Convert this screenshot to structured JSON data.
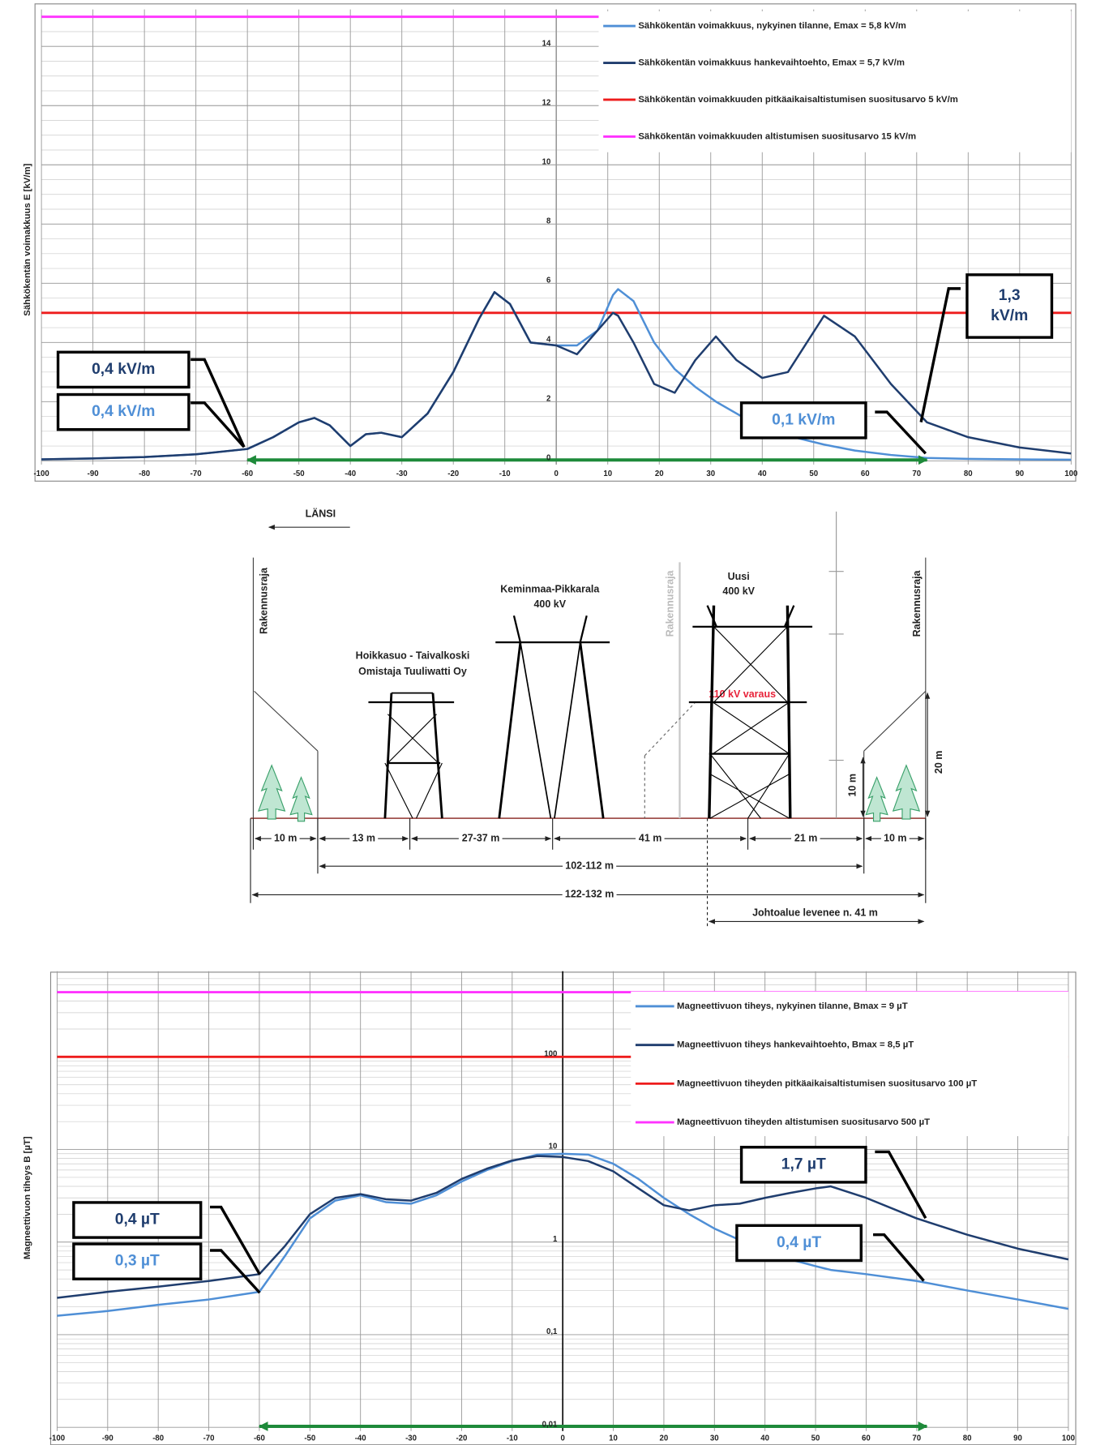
{
  "chart_data": [
    {
      "type": "line",
      "y_label": "Sähkökentän voimakkuus E [kV/m]",
      "x": [
        -100,
        -90,
        -80,
        -70,
        -60,
        -55,
        -50,
        -47,
        -44,
        -40,
        -37,
        -34,
        -30,
        -25,
        -20,
        -15,
        -12,
        -9,
        -5,
        0,
        4,
        8,
        11,
        12,
        15,
        19,
        23,
        27,
        31,
        35,
        40,
        45,
        52,
        58,
        65,
        72,
        80,
        90,
        100
      ],
      "series": [
        {
          "name": "Sähkökentän voimakkuus, nykyinen tilanne, Emax = 5,8 kV/m",
          "color": "#4f8fd6",
          "values": [
            0.05,
            0.08,
            0.13,
            0.22,
            0.4,
            0.8,
            1.3,
            1.45,
            1.2,
            0.5,
            0.9,
            0.95,
            0.8,
            1.6,
            3.0,
            4.8,
            5.7,
            5.3,
            4.0,
            3.9,
            3.9,
            4.4,
            5.6,
            5.8,
            5.4,
            4.0,
            3.1,
            2.5,
            2.0,
            1.6,
            1.1,
            0.85,
            0.55,
            0.35,
            0.2,
            0.1,
            0.07,
            0.05,
            0.04
          ]
        },
        {
          "name": "Sähkökentän voimakkuus hankevaihtoehto, Emax = 5,7 kV/m",
          "color": "#1f3d6e",
          "values": [
            0.05,
            0.08,
            0.13,
            0.22,
            0.4,
            0.8,
            1.3,
            1.45,
            1.2,
            0.5,
            0.9,
            0.95,
            0.8,
            1.6,
            3.0,
            4.8,
            5.7,
            5.3,
            4.0,
            3.9,
            3.6,
            4.4,
            5.0,
            4.9,
            4.0,
            2.6,
            2.3,
            3.4,
            4.2,
            3.4,
            2.8,
            3.0,
            4.9,
            4.2,
            2.6,
            1.3,
            0.8,
            0.45,
            0.25
          ]
        }
      ],
      "hlines": [
        {
          "name": "Sähkökentän voimakkuuden pitkäaikaisaltistumisen suositusarvo 5 kV/m",
          "color": "#ee1c1c",
          "value": 5
        },
        {
          "name": "Sähkökentän voimakkuuden altistumisen suositusarvo 15 kV/m",
          "color": "#ff33ff",
          "value": 15
        }
      ],
      "xlim": [
        -100,
        100
      ],
      "xticks": [
        -100,
        -90,
        -80,
        -70,
        -60,
        -50,
        -40,
        -30,
        -20,
        -10,
        0,
        10,
        20,
        30,
        40,
        50,
        60,
        70,
        80,
        90,
        100
      ],
      "ylim": [
        0,
        15
      ],
      "yticks": [
        0,
        2,
        4,
        6,
        8,
        10,
        12,
        14
      ],
      "log_y": false,
      "grid": true,
      "y_axis_position": 0,
      "legend": "upper right",
      "range_arrow": {
        "values": [
          -60,
          72
        ],
        "color": "#1e8a3a"
      },
      "annotations": [
        {
          "text": "0,4 kV/m",
          "color": "#1f3d6e"
        },
        {
          "text": "0,4 kV/m",
          "color": "#4f8fd6"
        },
        {
          "text": "0,1 kV/m",
          "color": "#4f8fd6"
        },
        {
          "text": [
            "1,3",
            "kV/m"
          ],
          "color": "#1f3d6e"
        }
      ]
    },
    {
      "type": "line",
      "y_label": "Magneettivuon tiheys B [µT]",
      "x": [
        -100,
        -90,
        -80,
        -70,
        -60,
        -55,
        -50,
        -45,
        -40,
        -35,
        -30,
        -25,
        -20,
        -15,
        -10,
        -5,
        0,
        5,
        10,
        15,
        20,
        25,
        30,
        35,
        40,
        45,
        50,
        53,
        60,
        70,
        80,
        90,
        100
      ],
      "series": [
        {
          "name": "Magneettivuon tiheys, nykyinen tilanne, Bmax = 9 µT",
          "color": "#4f8fd6",
          "values": [
            0.16,
            0.18,
            0.21,
            0.24,
            0.29,
            0.7,
            1.8,
            2.8,
            3.2,
            2.7,
            2.6,
            3.2,
            4.5,
            6.0,
            7.5,
            8.8,
            9.0,
            8.8,
            7.0,
            4.8,
            3.0,
            2.0,
            1.4,
            1.05,
            0.8,
            0.65,
            0.55,
            0.5,
            0.45,
            0.38,
            0.3,
            0.24,
            0.19
          ]
        },
        {
          "name": "Magneettivuon tiheys hankevaihtoehto, Bmax = 8,5 µT",
          "color": "#1f3d6e",
          "values": [
            0.25,
            0.29,
            0.33,
            0.38,
            0.45,
            0.9,
            2.0,
            3.0,
            3.3,
            2.9,
            2.8,
            3.4,
            4.8,
            6.2,
            7.6,
            8.5,
            8.3,
            7.5,
            5.8,
            3.8,
            2.5,
            2.2,
            2.5,
            2.6,
            3.0,
            3.4,
            3.8,
            4.0,
            3.0,
            1.8,
            1.2,
            0.85,
            0.65
          ]
        }
      ],
      "hlines": [
        {
          "name": "Magneettivuon tiheyden pitkäaikaisaltistumisen suositusarvo 100 µT",
          "color": "#ee1c1c",
          "value": 100
        },
        {
          "name": "Magneettivuon tiheyden altistumisen suositusarvo 500 µT",
          "color": "#ff33ff",
          "value": 500
        }
      ],
      "xlim": [
        -100,
        100
      ],
      "xticks": [
        -100,
        -90,
        -80,
        -70,
        -60,
        -50,
        -40,
        -30,
        -20,
        -10,
        0,
        10,
        20,
        30,
        40,
        50,
        60,
        70,
        80,
        90,
        100
      ],
      "ylim": [
        0.01,
        700
      ],
      "yticks": [
        {
          "value": 0.01,
          "label": "0,01"
        },
        {
          "value": 0.1,
          "label": "0,1"
        },
        1,
        10,
        100
      ],
      "log_y": true,
      "grid": true,
      "y_axis_position": 0,
      "legend": "upper right",
      "range_arrow": {
        "values": [
          -60,
          72
        ],
        "color": "#1e8a3a"
      },
      "annotations": [
        {
          "text": "0,4 µT",
          "color": "#1f3d6e"
        },
        {
          "text": "0,3 µT",
          "color": "#4f8fd6"
        },
        {
          "text": "1,7 µT",
          "color": "#1f3d6e"
        },
        {
          "text": "0,4 µT",
          "color": "#4f8fd6"
        }
      ]
    }
  ],
  "diagram": {
    "direction": "LÄNSI",
    "building_limit": "Rakennusraja",
    "lines": [
      {
        "name": "Hoikkasuo - Taivalkoski",
        "owner": "Omistaja Tuuliwatti Oy"
      },
      {
        "name": "Keminmaa-Pikkarala",
        "voltage": "400 kV"
      },
      {
        "name": "Uusi",
        "voltage": "400 kV",
        "reserve": "110 kV varaus"
      }
    ],
    "heights": [
      "10 m",
      "20 m"
    ],
    "widths": [
      "10 m",
      "13 m",
      "27-37 m",
      "41 m",
      "21 m",
      "10 m"
    ],
    "spans": [
      "102-112 m",
      "122-132 m"
    ],
    "widening": "Johtoalue levenee n. 41 m"
  }
}
